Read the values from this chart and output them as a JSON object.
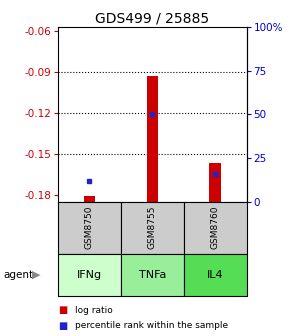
{
  "title": "GDS499 / 25885",
  "samples": [
    "GSM8750",
    "GSM8755",
    "GSM8760"
  ],
  "agents": [
    "IFNg",
    "TNFa",
    "IL4"
  ],
  "log_ratios": [
    -0.181,
    -0.093,
    -0.157
  ],
  "percentile_ranks": [
    12,
    50,
    16
  ],
  "ylim_left": [
    -0.185,
    -0.057
  ],
  "yticks_left": [
    -0.18,
    -0.15,
    -0.12,
    -0.09,
    -0.06
  ],
  "ytick_labels_left": [
    "-0.18",
    "-0.15",
    "-0.12",
    "-0.09",
    "-0.06"
  ],
  "yticks_right_vals": [
    0,
    25,
    50,
    75,
    100
  ],
  "ytick_labels_right": [
    "0",
    "25",
    "50",
    "75",
    "100%"
  ],
  "bar_color": "#cc0000",
  "dot_color": "#2222cc",
  "agent_colors": [
    "#ccffcc",
    "#99ee99",
    "#55dd55"
  ],
  "sample_bg_color": "#cccccc",
  "title_fontsize": 10,
  "tick_fontsize": 7.5,
  "legend_fontsize": 6.5,
  "bar_width": 0.18
}
